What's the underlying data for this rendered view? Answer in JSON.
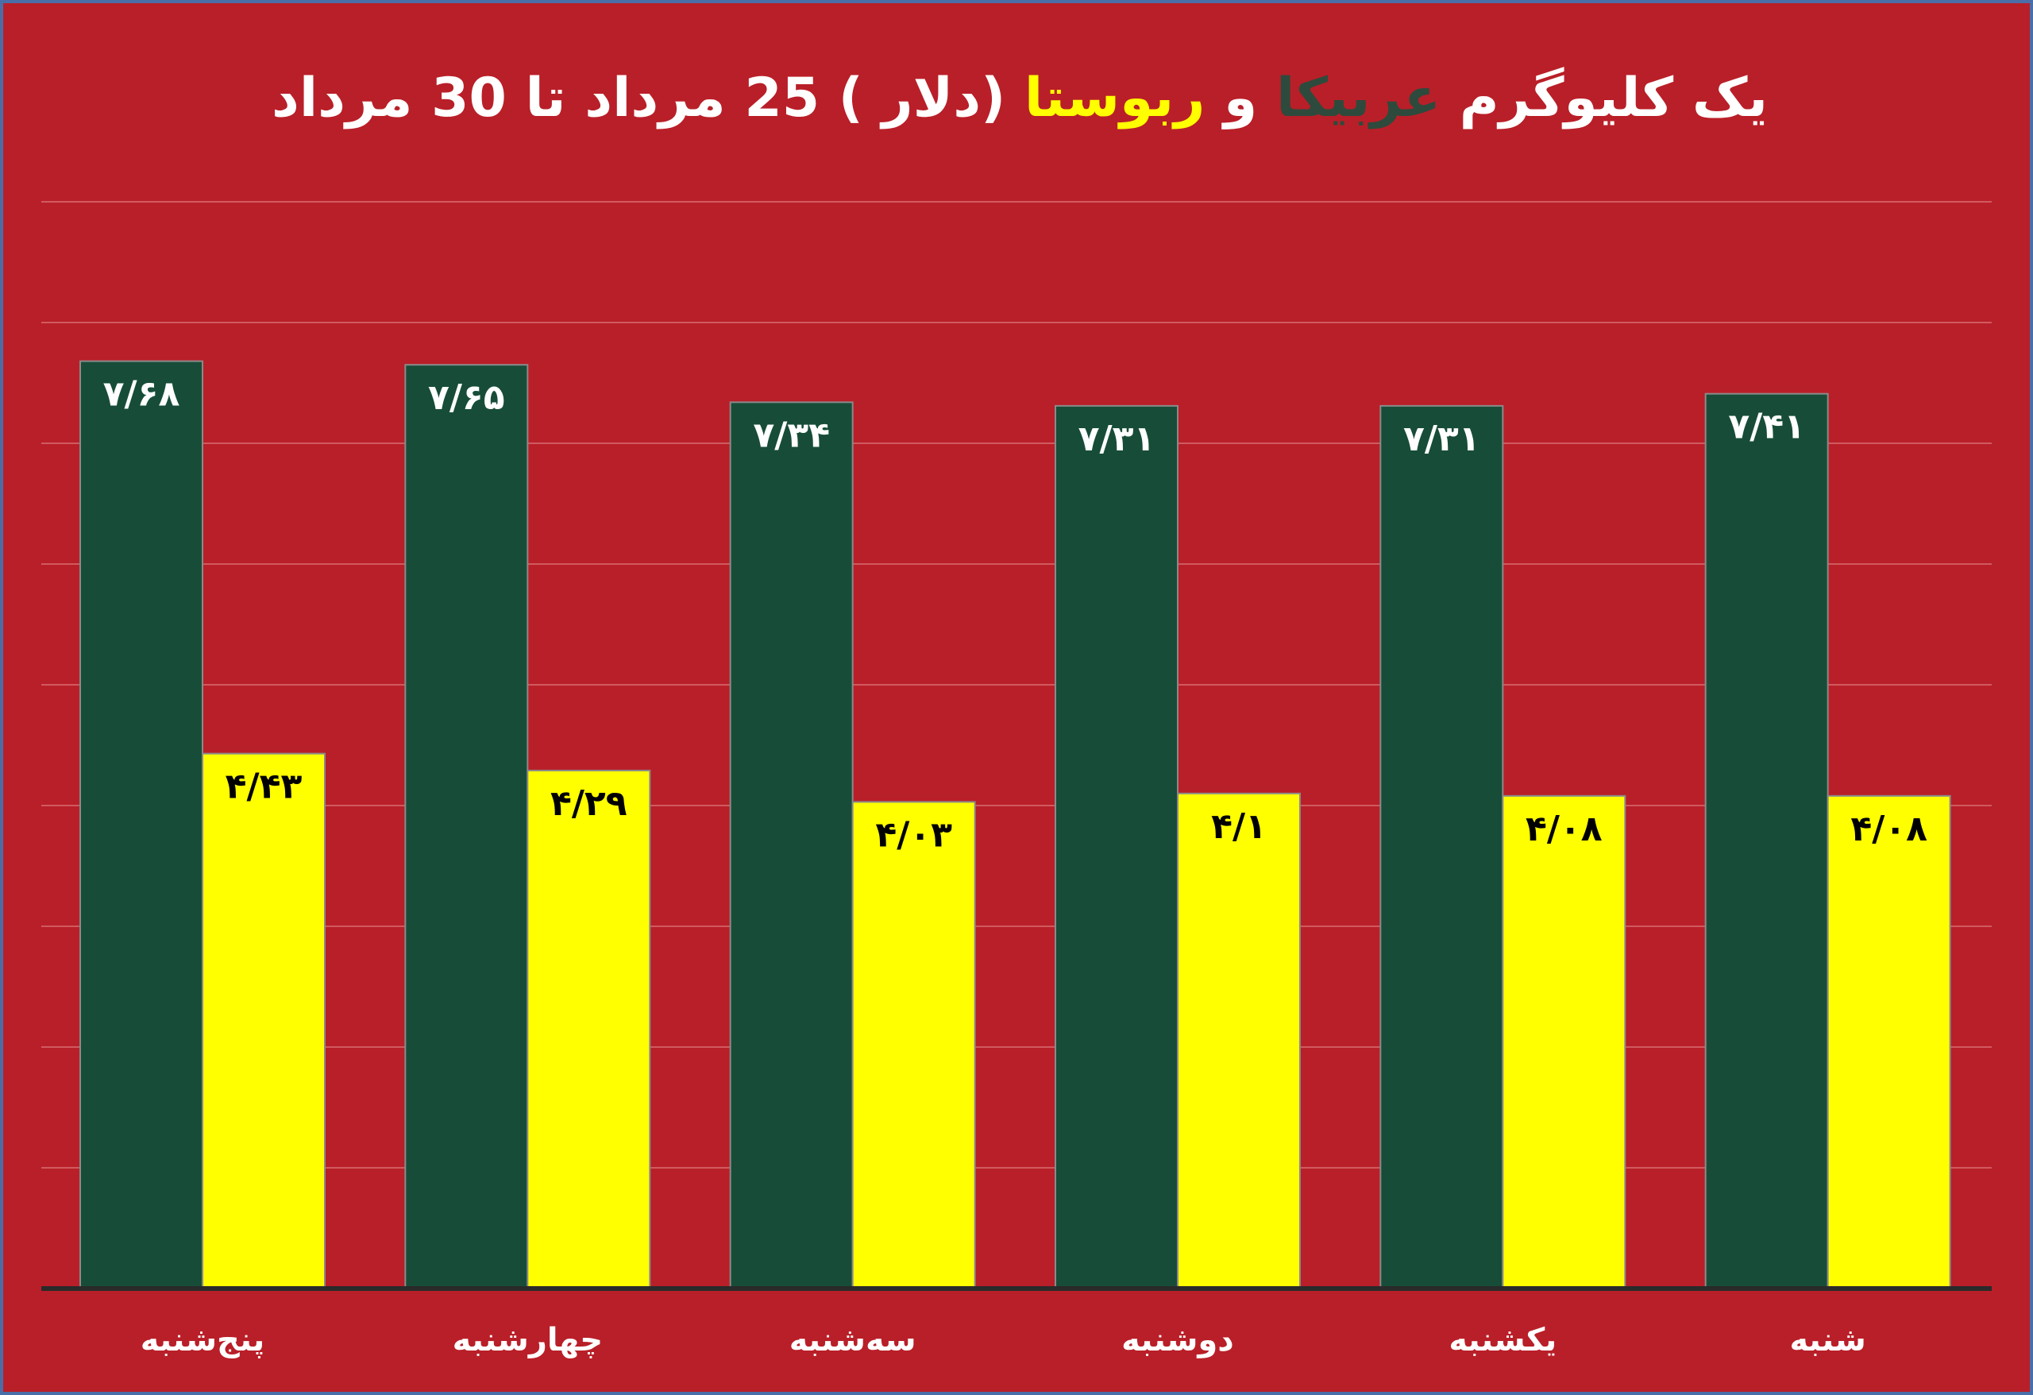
{
  "colors": {
    "background": "#b91f28",
    "arabica": "#174d38",
    "robusta": "#ffff00",
    "grid": "#d05a60",
    "title_text": "#ffffff",
    "arabica_title": "#2e4a3c",
    "robusta_title": "#ffff00",
    "axis": "#2a2a2a"
  },
  "title": {
    "part1": "یک کلیوگرم ",
    "arabica_word": "عربیکا",
    "part2": " و ",
    "robusta_word": "ربوستا",
    "part3": " (دلار ) 25 مرداد تا 30 مرداد"
  },
  "chart_data": {
    "type": "bar",
    "categories": [
      "پنج‌شنبه",
      "چهارشنبه",
      "سه‌شنبه",
      "دوشنبه",
      "یکشنبه",
      "شنبه"
    ],
    "series": [
      {
        "key": "arabica",
        "values": [
          7.68,
          7.65,
          7.34,
          7.31,
          7.31,
          7.41
        ],
        "labels": [
          "۷/۶۸",
          "۷/۶۵",
          "۷/۳۴",
          "۷/۳۱",
          "۷/۳۱",
          "۷/۴۱"
        ]
      },
      {
        "key": "robusta",
        "values": [
          4.43,
          4.29,
          4.03,
          4.1,
          4.08,
          4.08
        ],
        "labels": [
          "۴/۴۳",
          "۴/۲۹",
          "۴/۰۳",
          "۴/۱",
          "۴/۰۸",
          "۴/۰۸"
        ]
      }
    ],
    "ylim": [
      0,
      9
    ],
    "grid": true,
    "legend": "none"
  }
}
